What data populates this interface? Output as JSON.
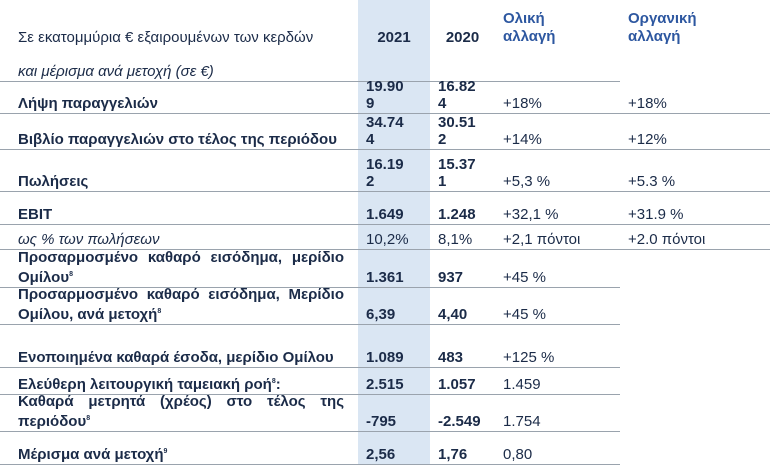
{
  "table": {
    "header": {
      "label": "Σε εκατομμύρια € εξαιρουμένων των κερδών",
      "columns": [
        "2021",
        "2020",
        [
          "Ολική",
          "αλλαγή"
        ],
        [
          "Οργανική",
          "αλλαγή"
        ]
      ],
      "sublabel": "και μέρισμα ανά μετοχή (σε €)"
    },
    "rows": [
      {
        "label": "Λήψη παραγγελιών",
        "cells": [
          "19.909",
          "16.824",
          "+18%",
          "+18%"
        ]
      },
      {
        "label": "Βιβλίο παραγγελιών στο τέλος της περιόδου",
        "cells": [
          "34.744",
          "30.512",
          "+14%",
          "+12%"
        ]
      },
      {
        "label": "Πωλήσεις",
        "cells": [
          "16.192",
          "15.371",
          "+5,3 %",
          "+5.3 %"
        ]
      },
      {
        "label": "EBIT",
        "cells": [
          "1.649",
          "1.248",
          "+32,1 %",
          "+31.9 %"
        ]
      },
      {
        "label": "ως % των πωλήσεων",
        "style": "italic",
        "cells": [
          "10,2%",
          "8,1%",
          "+2,1 πόντοι",
          "+2.0 πόντοι"
        ]
      },
      {
        "label": "Προσαρμοσμένο καθαρό εισόδημα, μερίδιο Ομίλου",
        "note": "8",
        "cells": [
          "1.361",
          "937",
          "+45 %"
        ]
      },
      {
        "label": "Προσαρμοσμένο καθαρό εισόδημα, Μερίδιο Ομίλου, ανά μετοχή",
        "note": "8",
        "cells": [
          "6,39",
          "4,40",
          "+45 %"
        ]
      },
      {
        "label": "Ενοποιημένα καθαρά έσοδα, μερίδιο Ομίλου",
        "cells": [
          "1.089",
          "483",
          "+125 %"
        ]
      },
      {
        "label": "Ελεύθερη λειτουργική ταμειακή ροή",
        "note": "8",
        "suffix": ":",
        "cells": [
          "2.515",
          "1.057",
          "1.459"
        ]
      },
      {
        "label": "Καθαρά μετρητά (χρέος) στο τέλος της περιόδου",
        "note": "8",
        "cells": [
          "-795",
          "-2.549",
          "1.754"
        ]
      },
      {
        "label": "Μέρισμα ανά μετοχή",
        "note": "9",
        "cells": [
          "2,56",
          "1,76",
          "0,80"
        ]
      }
    ]
  }
}
